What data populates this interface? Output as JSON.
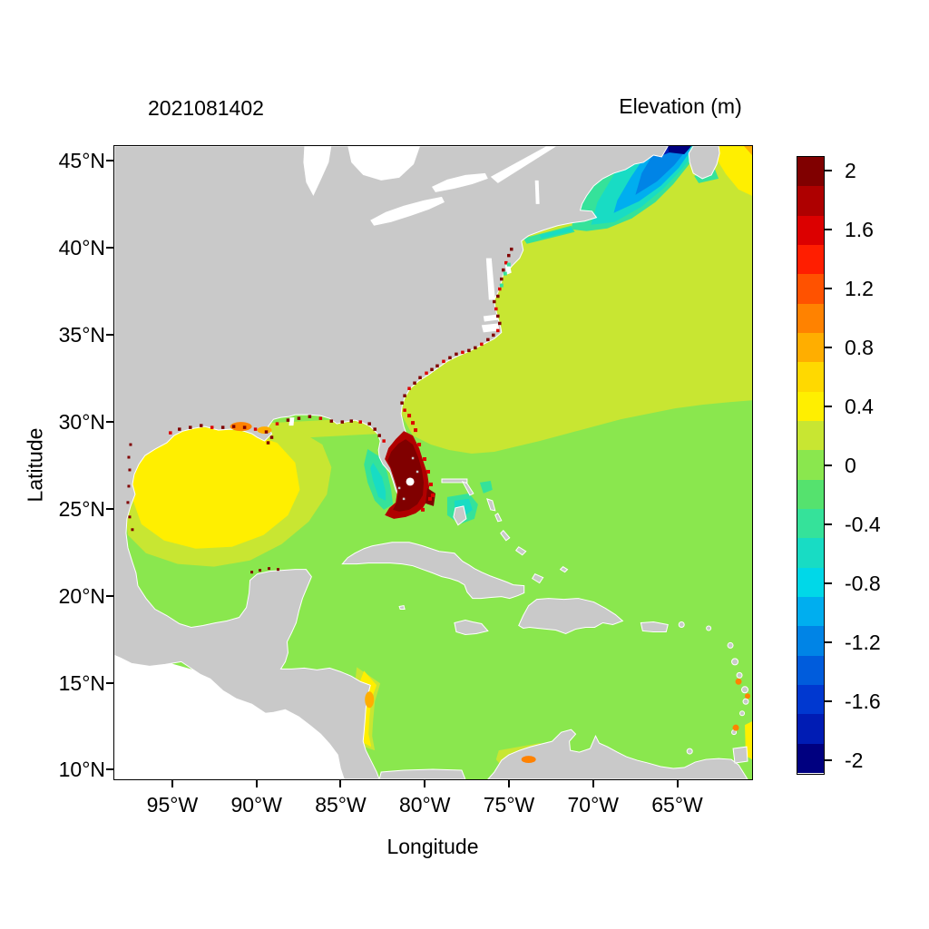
{
  "chart_data": {
    "type": "heatmap",
    "title": "Elevation (m)",
    "subtitle": "2021081402",
    "xlabel": "Longitude",
    "ylabel": "Latitude",
    "x_ticks": [
      "95°W",
      "90°W",
      "85°W",
      "80°W",
      "75°W",
      "70°W",
      "65°W"
    ],
    "x_tick_values_deg_west": [
      95,
      90,
      85,
      80,
      75,
      70,
      65
    ],
    "y_ticks": [
      "45°N",
      "40°N",
      "35°N",
      "30°N",
      "25°N",
      "20°N",
      "15°N",
      "10°N"
    ],
    "y_tick_values_deg_north": [
      45,
      40,
      35,
      30,
      25,
      20,
      15,
      10
    ],
    "xlim_west_deg": [
      98.5,
      60.5
    ],
    "ylim_north_deg": [
      9.4,
      45.9
    ],
    "grid": false,
    "field_units": "m",
    "land_color": "#C9C9C9",
    "no_data_color": "#FFFFFF",
    "colorbar": {
      "position": "right",
      "min": -2.1,
      "max": 2.1,
      "step": 0.2,
      "tick_labels": [
        "2",
        "1.6",
        "1.2",
        "0.8",
        "0.4",
        "0",
        "-0.4",
        "-0.8",
        "-1.2",
        "-1.6",
        "-2"
      ],
      "tick_values": [
        2,
        1.6,
        1.2,
        0.8,
        0.4,
        0,
        -0.4,
        -0.8,
        -1.2,
        -1.6,
        -2
      ],
      "colors_top_to_bottom": [
        "#800000",
        "#AE0000",
        "#DC0000",
        "#FF1E00",
        "#FF5200",
        "#FF8200",
        "#FFAE00",
        "#FFD900",
        "#FFEF00",
        "#C8E632",
        "#8AE74E",
        "#55E26E",
        "#35E29A",
        "#18DCC4",
        "#00D8E8",
        "#00AEEF",
        "#0084E6",
        "#005CDC",
        "#0038D0",
        "#001CB4",
        "#000080"
      ]
    },
    "regions": [
      {
        "name": "Caribbean Sea and tropical Atlantic",
        "approx_value_m": 0.1
      },
      {
        "name": "North Atlantic (north of ~29N)",
        "approx_value_m": 0.3
      },
      {
        "name": "Western Gulf of Mexico",
        "approx_value_m": 0.5
      },
      {
        "name": "Northern Gulf coast speckles (TX-FL)",
        "approx_value_m": 1.5
      },
      {
        "name": "South Florida peninsula / SE Florida coast",
        "approx_value_m": 2.1
      },
      {
        "name": "Georgia-Carolinas coastline speckles",
        "approx_value_m": 1.8
      },
      {
        "name": "West Florida shelf band",
        "approx_value_m": -0.6
      },
      {
        "name": "Bahamas banks patches",
        "approx_value_m": -0.6
      },
      {
        "name": "Gulf of Maine",
        "approx_value_m": -0.9
      },
      {
        "name": "Bay of Fundy",
        "approx_value_m": -1.9
      },
      {
        "name": "Atlantic NE of Nova Scotia (top-right corner)",
        "approx_value_m": 0.5
      },
      {
        "name": "Nicaragua-Honduras coast",
        "approx_value_m": 0.7
      },
      {
        "name": "Colombia coast (SW Caribbean)",
        "approx_value_m": 0.5
      }
    ]
  }
}
